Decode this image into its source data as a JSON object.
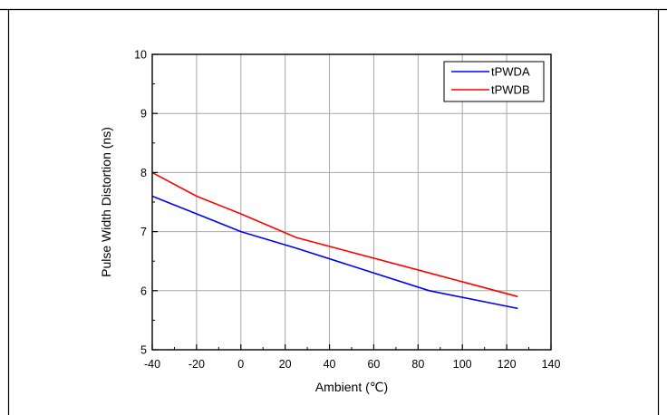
{
  "chart_data": {
    "type": "line",
    "title": "",
    "xlabel": "Ambient (℃)",
    "ylabel": "Pulse Width Distortion (ns)",
    "xlim": [
      -40,
      140
    ],
    "ylim": [
      5,
      10
    ],
    "xticks": [
      -40,
      -20,
      0,
      20,
      40,
      60,
      80,
      100,
      120,
      140
    ],
    "yticks": [
      5,
      6,
      7,
      8,
      9,
      10
    ],
    "grid": true,
    "legend_position": "top-right",
    "series": [
      {
        "name": "tPWDA",
        "color": "#0000ff",
        "x": [
          -40,
          -20,
          0,
          25,
          85,
          125
        ],
        "y": [
          7.6,
          7.3,
          7.0,
          6.72,
          6.0,
          5.7
        ]
      },
      {
        "name": "tPWDB",
        "color": "#ff0000",
        "x": [
          -40,
          -20,
          0,
          25,
          85,
          125
        ],
        "y": [
          8.0,
          7.6,
          7.3,
          6.9,
          6.3,
          5.9
        ]
      }
    ]
  }
}
